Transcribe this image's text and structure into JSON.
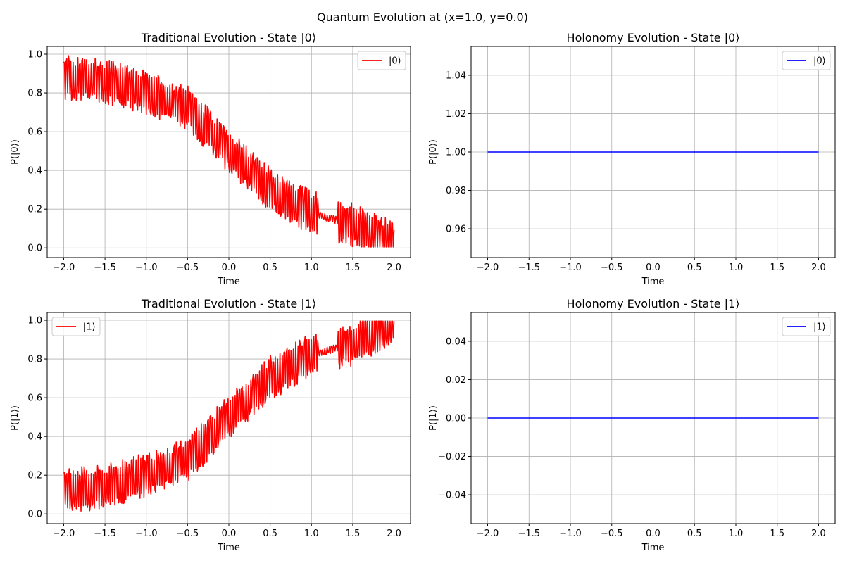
{
  "figure": {
    "suptitle": "Quantum Evolution at (x=1.0, y=0.0)"
  },
  "chart_data": [
    {
      "type": "line",
      "title": "Traditional Evolution - State |0⟩",
      "xlabel": "Time",
      "ylabel": "P(|0⟩)",
      "xlim": [
        -2.2,
        2.2
      ],
      "ylim": [
        -0.05,
        1.04
      ],
      "xticks": [
        -2.0,
        -1.5,
        -1.0,
        -0.5,
        0.0,
        0.5,
        1.0,
        1.5,
        2.0
      ],
      "xtick_labels": [
        "−2.0",
        "−1.5",
        "−1.0",
        "−0.5",
        "0.0",
        "0.5",
        "1.0",
        "1.5",
        "2.0"
      ],
      "yticks": [
        0.0,
        0.2,
        0.4,
        0.6,
        0.8,
        1.0
      ],
      "ytick_labels": [
        "0.0",
        "0.2",
        "0.4",
        "0.6",
        "0.8",
        "1.0"
      ],
      "grid": true,
      "legend_position": "top-right",
      "series": [
        {
          "name": "|0⟩",
          "color": "#ff0000",
          "x": [
            -2.0,
            -1.5,
            -1.0,
            -0.5,
            0.0,
            0.5,
            1.0,
            1.5,
            2.0
          ],
          "y": [
            0.88,
            0.86,
            0.8,
            0.72,
            0.5,
            0.3,
            0.18,
            0.12,
            0.02
          ],
          "oscillation": "rapid high-frequency oscillation of amplitude about 0.1-0.15 around the trend; near-flat around t≈1.2"
        }
      ]
    },
    {
      "type": "line",
      "title": "Holonomy Evolution - State |0⟩",
      "xlabel": "Time",
      "ylabel": "P(|0⟩)",
      "xlim": [
        -2.2,
        2.2
      ],
      "ylim": [
        0.945,
        1.055
      ],
      "xticks": [
        -2.0,
        -1.5,
        -1.0,
        -0.5,
        0.0,
        0.5,
        1.0,
        1.5,
        2.0
      ],
      "xtick_labels": [
        "−2.0",
        "−1.5",
        "−1.0",
        "−0.5",
        "0.0",
        "0.5",
        "1.0",
        "1.5",
        "2.0"
      ],
      "yticks": [
        0.96,
        0.98,
        1.0,
        1.02,
        1.04
      ],
      "ytick_labels": [
        "0.96",
        "0.98",
        "1.00",
        "1.02",
        "1.04"
      ],
      "grid": true,
      "legend_position": "top-right",
      "series": [
        {
          "name": "|0⟩",
          "color": "#0000ff",
          "x": [
            -2.0,
            2.0
          ],
          "y": [
            1.0,
            1.0
          ]
        }
      ]
    },
    {
      "type": "line",
      "title": "Traditional Evolution - State |1⟩",
      "xlabel": "Time",
      "ylabel": "P(|1⟩)",
      "xlim": [
        -2.2,
        2.2
      ],
      "ylim": [
        -0.05,
        1.04
      ],
      "xticks": [
        -2.0,
        -1.5,
        -1.0,
        -0.5,
        0.0,
        0.5,
        1.0,
        1.5,
        2.0
      ],
      "xtick_labels": [
        "−2.0",
        "−1.5",
        "−1.0",
        "−0.5",
        "0.0",
        "0.5",
        "1.0",
        "1.5",
        "2.0"
      ],
      "yticks": [
        0.0,
        0.2,
        0.4,
        0.6,
        0.8,
        1.0
      ],
      "ytick_labels": [
        "0.0",
        "0.2",
        "0.4",
        "0.6",
        "0.8",
        "1.0"
      ],
      "grid": true,
      "legend_position": "top-left",
      "series": [
        {
          "name": "|1⟩",
          "color": "#ff0000",
          "x": [
            -2.0,
            -1.5,
            -1.0,
            -0.5,
            0.0,
            0.5,
            1.0,
            1.5,
            2.0
          ],
          "y": [
            0.12,
            0.14,
            0.2,
            0.28,
            0.5,
            0.7,
            0.82,
            0.88,
            0.98
          ],
          "oscillation": "rapid high-frequency oscillation of amplitude about 0.1-0.15 around the trend; near-flat around t≈1.2"
        }
      ]
    },
    {
      "type": "line",
      "title": "Holonomy Evolution - State |1⟩",
      "xlabel": "Time",
      "ylabel": "P(|1⟩)",
      "xlim": [
        -2.2,
        2.2
      ],
      "ylim": [
        -0.055,
        0.055
      ],
      "xticks": [
        -2.0,
        -1.5,
        -1.0,
        -0.5,
        0.0,
        0.5,
        1.0,
        1.5,
        2.0
      ],
      "xtick_labels": [
        "−2.0",
        "−1.5",
        "−1.0",
        "−0.5",
        "0.0",
        "0.5",
        "1.0",
        "1.5",
        "2.0"
      ],
      "yticks": [
        -0.04,
        -0.02,
        0.0,
        0.02,
        0.04
      ],
      "ytick_labels": [
        "−0.04",
        "−0.02",
        "0.00",
        "0.02",
        "0.04"
      ],
      "grid": true,
      "legend_position": "top-right",
      "series": [
        {
          "name": "|1⟩",
          "color": "#0000ff",
          "x": [
            -2.0,
            2.0
          ],
          "y": [
            0.0,
            0.0
          ]
        }
      ]
    }
  ]
}
